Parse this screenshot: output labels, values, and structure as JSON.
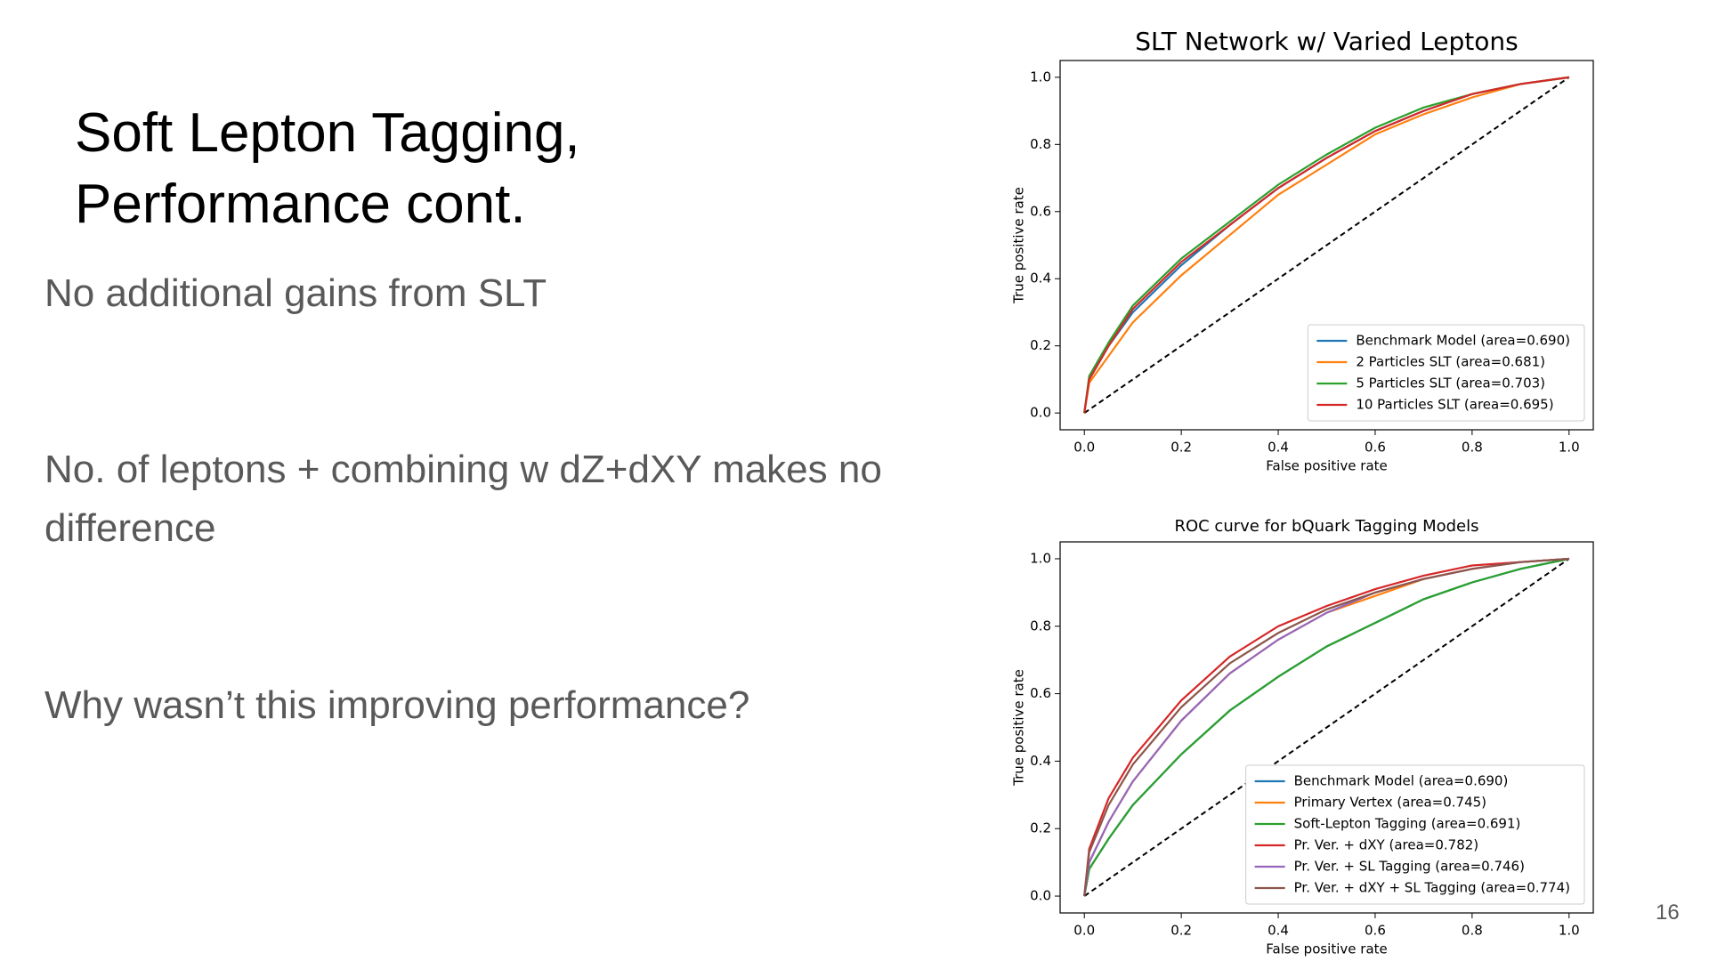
{
  "slide": {
    "title": [
      "Soft Lepton Tagging,",
      "Performance cont."
    ],
    "bullets": [
      "No additional gains from SLT",
      "No. of leptons + combining w dZ+dXY makes no difference",
      "Why wasn’t this improving performance?"
    ],
    "page_number": "16"
  },
  "chart_data": [
    {
      "type": "line",
      "title": "SLT Network w/ Varied Leptons",
      "xlabel": "False positive rate",
      "ylabel": "True positive rate",
      "x": [
        0,
        0.01,
        0.05,
        0.1,
        0.2,
        0.3,
        0.4,
        0.5,
        0.6,
        0.7,
        0.8,
        0.9,
        1.0
      ],
      "series": [
        {
          "name": "Benchmark Model (area=0.690)",
          "color": "#1f77b4",
          "values": [
            0,
            0.1,
            0.2,
            0.3,
            0.44,
            0.56,
            0.67,
            0.76,
            0.84,
            0.9,
            0.95,
            0.98,
            1.0
          ]
        },
        {
          "name": "2 Particles SLT (area=0.681)",
          "color": "#ff7f0e",
          "values": [
            0,
            0.09,
            0.17,
            0.27,
            0.41,
            0.53,
            0.65,
            0.74,
            0.83,
            0.89,
            0.94,
            0.98,
            1.0
          ]
        },
        {
          "name": "5 Particles SLT (area=0.703)",
          "color": "#2ca02c",
          "values": [
            0,
            0.11,
            0.21,
            0.32,
            0.46,
            0.57,
            0.68,
            0.77,
            0.85,
            0.91,
            0.95,
            0.98,
            1.0
          ]
        },
        {
          "name": "10 Particles SLT (area=0.695)",
          "color": "#d62728",
          "values": [
            0,
            0.1,
            0.2,
            0.31,
            0.45,
            0.56,
            0.67,
            0.76,
            0.84,
            0.9,
            0.95,
            0.98,
            1.0
          ]
        }
      ],
      "xlim": [
        -0.05,
        1.05
      ],
      "ylim": [
        -0.05,
        1.05
      ],
      "xticks": [
        {
          "value": 0,
          "label": "0.0"
        },
        0.2,
        0.4,
        0.6,
        0.8,
        {
          "value": 1,
          "label": "1.0"
        }
      ],
      "yticks": [
        {
          "value": 0,
          "label": "0.0"
        },
        0.2,
        0.4,
        0.6,
        0.8,
        {
          "value": 1,
          "label": "1.0"
        }
      ],
      "legend": "lower right"
    },
    {
      "type": "line",
      "title": "ROC curve for bQuark Tagging Models",
      "xlabel": "False positive rate",
      "ylabel": "True positive rate",
      "x": [
        0,
        0.01,
        0.05,
        0.1,
        0.2,
        0.3,
        0.4,
        0.5,
        0.6,
        0.7,
        0.8,
        0.9,
        1.0
      ],
      "series": [
        {
          "name": "Benchmark Model (area=0.690)",
          "color": "#1f77b4",
          "values": [
            0,
            0.08,
            0.17,
            0.27,
            0.42,
            0.55,
            0.65,
            0.74,
            0.81,
            0.88,
            0.93,
            0.97,
            1.0
          ]
        },
        {
          "name": "Primary Vertex (area=0.745)",
          "color": "#ff7f0e",
          "values": [
            0,
            0.1,
            0.22,
            0.34,
            0.52,
            0.66,
            0.76,
            0.84,
            0.89,
            0.94,
            0.97,
            0.99,
            1.0
          ]
        },
        {
          "name": "Soft-Lepton Tagging (area=0.691)",
          "color": "#2ca02c",
          "values": [
            0,
            0.08,
            0.17,
            0.27,
            0.42,
            0.55,
            0.65,
            0.74,
            0.81,
            0.88,
            0.93,
            0.97,
            1.0
          ]
        },
        {
          "name": "Pr. Ver. + dXY (area=0.782)",
          "color": "#d62728",
          "values": [
            0,
            0.14,
            0.29,
            0.41,
            0.58,
            0.71,
            0.8,
            0.86,
            0.91,
            0.95,
            0.98,
            0.99,
            1.0
          ]
        },
        {
          "name": "Pr. Ver. + SL Tagging (area=0.746)",
          "color": "#9467bd",
          "values": [
            0,
            0.1,
            0.22,
            0.34,
            0.52,
            0.66,
            0.76,
            0.84,
            0.9,
            0.94,
            0.97,
            0.99,
            1.0
          ]
        },
        {
          "name": "Pr. Ver. + dXY + SL Tagging (area=0.774)",
          "color": "#8c564b",
          "values": [
            0,
            0.13,
            0.27,
            0.39,
            0.56,
            0.69,
            0.78,
            0.85,
            0.9,
            0.94,
            0.97,
            0.99,
            1.0
          ]
        }
      ],
      "xlim": [
        -0.05,
        1.05
      ],
      "ylim": [
        -0.05,
        1.05
      ],
      "xticks": [
        {
          "value": 0,
          "label": "0.0"
        },
        0.2,
        0.4,
        0.6,
        0.8,
        {
          "value": 1,
          "label": "1.0"
        }
      ],
      "yticks": [
        {
          "value": 0,
          "label": "0.0"
        },
        0.2,
        0.4,
        0.6,
        0.8,
        {
          "value": 1,
          "label": "1.0"
        }
      ],
      "legend": "lower right"
    }
  ]
}
